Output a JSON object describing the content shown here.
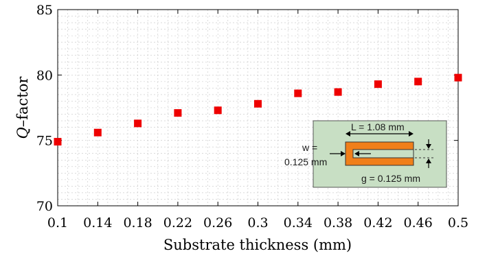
{
  "chart_data": {
    "type": "scatter",
    "xlabel": "Substrate thickness (mm)",
    "ylabel_italic": "Q",
    "ylabel_rest": "–factor",
    "x": [
      0.1,
      0.14,
      0.18,
      0.22,
      0.26,
      0.3,
      0.34,
      0.38,
      0.42,
      0.46,
      0.5
    ],
    "y": [
      74.9,
      75.6,
      76.3,
      77.1,
      77.3,
      77.8,
      78.6,
      78.7,
      79.3,
      79.5,
      79.8
    ],
    "xlim": [
      0.1,
      0.5
    ],
    "ylim": [
      70,
      85
    ],
    "x_tick_labels": [
      "0.1",
      "0.14",
      "0.18",
      "0.22",
      "0.26",
      "0.3",
      "0.34",
      "0.38",
      "0.42",
      "0.46",
      "0.5"
    ],
    "y_tick_labels": [
      "70",
      "75",
      "80",
      "85"
    ],
    "grid": "dashed minor and major",
    "marker": "square",
    "marker_color": "#ee0000",
    "inset": {
      "background": "#c8dfc4",
      "resonator_color": "#f07f1a",
      "label_L": "L = 1.08 mm",
      "label_w_line1": "w =",
      "label_w_line2": "0.125 mm",
      "label_g": "g = 0.125 mm"
    }
  }
}
